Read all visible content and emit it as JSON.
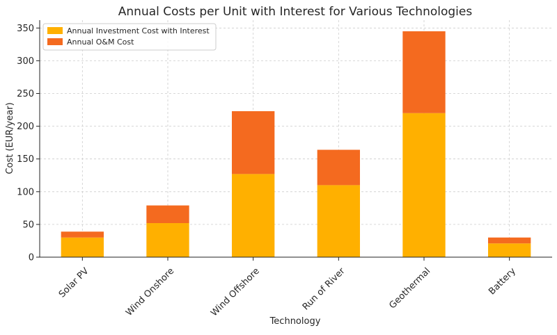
{
  "chart_data": {
    "type": "bar",
    "stacked": true,
    "title": "Annual Costs per Unit with Interest for Various Technologies",
    "xlabel": "Technology",
    "ylabel": "Cost (EUR/year)",
    "categories": [
      "Solar PV",
      "Wind Onshore",
      "Wind Offshore",
      "Run of River",
      "Geothermal",
      "Battery"
    ],
    "series": [
      {
        "name": "Annual Investment Cost with Interest",
        "color": "#FFB000",
        "values": [
          30,
          52,
          127,
          110,
          220,
          21
        ]
      },
      {
        "name": "Annual O&M Cost",
        "color": "#F46A1F",
        "values": [
          9,
          27,
          96,
          54,
          125,
          9
        ]
      }
    ],
    "ylim": [
      0,
      362
    ],
    "yticks": [
      0,
      50,
      100,
      150,
      200,
      250,
      300,
      350
    ],
    "grid": true,
    "legend_position": "top-left"
  }
}
